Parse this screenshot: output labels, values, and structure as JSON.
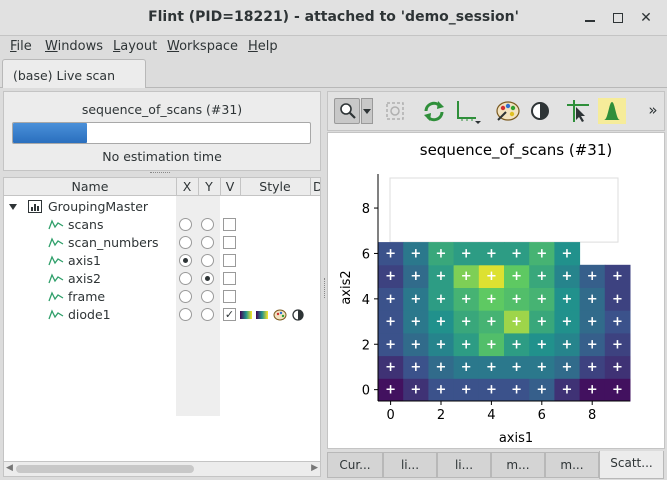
{
  "window": {
    "title": "Flint (PID=18221) - attached to 'demo_session'"
  },
  "menu": {
    "file": "File",
    "windows": "Windows",
    "layout": "Layout",
    "workspace": "Workspace",
    "help": "Help"
  },
  "tabs": {
    "live_scan": "(base) Live scan"
  },
  "progress": {
    "title": "sequence_of_scans (#31)",
    "fraction": 0.25,
    "estimation": "No estimation time"
  },
  "tree": {
    "columns": [
      "Name",
      "X",
      "Y",
      "V",
      "Style",
      "D"
    ],
    "root": "GroupingMaster",
    "items": [
      {
        "name": "scans",
        "x": false,
        "y": false,
        "v": false
      },
      {
        "name": "scan_numbers",
        "x": false,
        "y": false,
        "v": false
      },
      {
        "name": "axis1",
        "x": true,
        "y": false,
        "v": false
      },
      {
        "name": "axis2",
        "x": false,
        "y": true,
        "v": false
      },
      {
        "name": "frame",
        "x": false,
        "y": false,
        "v": false
      },
      {
        "name": "diode1",
        "x": false,
        "y": false,
        "v": true,
        "check": "✓"
      }
    ]
  },
  "toolbar": {
    "icons": [
      "zoom-icon",
      "dropdown-icon",
      "reset-zoom-icon",
      "refresh-icon",
      "axes-options-icon",
      "colormap-icon",
      "contrast-icon",
      "crosshair-icon",
      "histogram-icon",
      "more-icon"
    ],
    "more": "»"
  },
  "chart_data": {
    "type": "heatmap",
    "title": "sequence_of_scans (#31)",
    "xlabel": "axis1",
    "ylabel": "axis2",
    "xlim": [
      -0.5,
      9.5
    ],
    "ylim": [
      -0.5,
      9.5
    ],
    "xticks": [
      0,
      2,
      4,
      6,
      8
    ],
    "yticks": [
      0,
      2,
      4,
      6,
      8
    ],
    "grid": false,
    "marker": "+",
    "x": [
      0,
      1,
      2,
      3,
      4,
      5,
      6,
      7,
      8,
      9
    ],
    "y": [
      0,
      1,
      2,
      3,
      4,
      5,
      6
    ],
    "values": [
      [
        0.05,
        0.15,
        0.25,
        0.25,
        0.25,
        0.25,
        0.3,
        0.15,
        0.05,
        0.05
      ],
      [
        0.15,
        0.25,
        0.35,
        0.4,
        0.4,
        0.4,
        0.4,
        0.35,
        0.2,
        0.15
      ],
      [
        0.25,
        0.35,
        0.45,
        0.55,
        0.7,
        0.55,
        0.5,
        0.45,
        0.3,
        0.2
      ],
      [
        0.25,
        0.4,
        0.5,
        0.6,
        0.65,
        0.85,
        0.6,
        0.5,
        0.35,
        0.25
      ],
      [
        0.25,
        0.4,
        0.55,
        0.65,
        0.75,
        0.7,
        0.65,
        0.5,
        0.35,
        0.2
      ],
      [
        0.2,
        0.35,
        0.55,
        0.8,
        0.95,
        0.75,
        0.6,
        0.45,
        0.3,
        0.2
      ],
      [
        0.25,
        0.4,
        0.6,
        0.55,
        0.55,
        0.55,
        0.65,
        0.5,
        null,
        null
      ]
    ]
  },
  "bottom_tabs": [
    "Cur...",
    "li...",
    "li...",
    "m...",
    "m...",
    "Scatt..."
  ]
}
